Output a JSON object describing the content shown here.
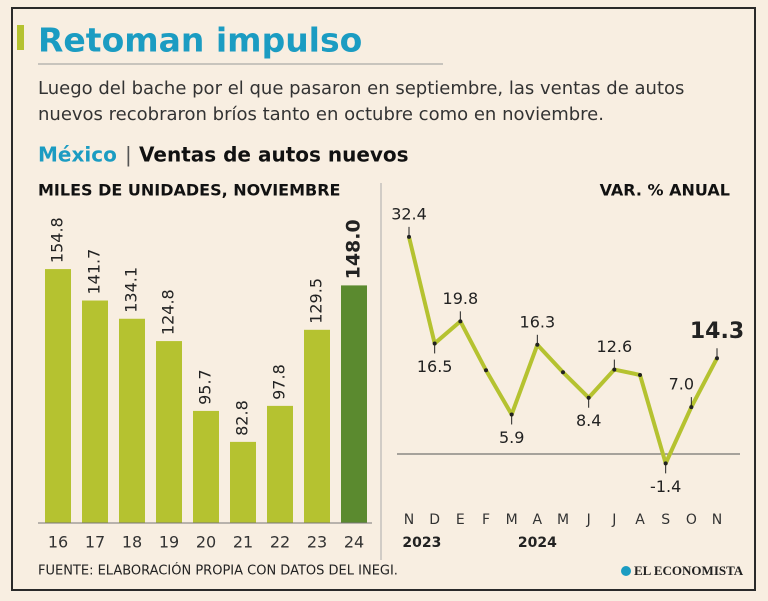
{
  "header": {
    "title": "Retoman impulso",
    "subtitle_lines": [
      "Luego del bache por el que pasaron en septiembre, las ventas de autos",
      "nuevos recobraron bríos tanto en octubre como en noviembre."
    ],
    "region": "México",
    "separator": "|",
    "chart_name": "Ventas de autos nuevos"
  },
  "chart_data": [
    {
      "type": "bar",
      "axis_label": "MILES DE UNIDADES, NOVIEMBRE",
      "categories": [
        "16",
        "17",
        "18",
        "19",
        "20",
        "21",
        "22",
        "23",
        "24"
      ],
      "values": [
        154.8,
        141.7,
        134.1,
        124.8,
        95.7,
        82.8,
        97.8,
        129.5,
        148.0
      ],
      "value_labels": [
        "154.8",
        "141.7",
        "134.1",
        "124.8",
        "95.7",
        "82.8",
        "97.8",
        "129.5",
        "148.0"
      ],
      "colors": [
        "#b5c230",
        "#b5c230",
        "#b5c230",
        "#b5c230",
        "#b5c230",
        "#b5c230",
        "#b5c230",
        "#b5c230",
        "#5b8a2f"
      ],
      "ylim": [
        49,
        160
      ],
      "highlight_last": true
    },
    {
      "type": "line",
      "axis_label": "VAR. % ANUAL",
      "categories": [
        "N",
        "D",
        "E",
        "F",
        "M",
        "A",
        "M",
        "J",
        "J",
        "A",
        "S",
        "O",
        "N"
      ],
      "values": [
        32.4,
        16.5,
        19.8,
        12.5,
        5.9,
        16.3,
        12.2,
        8.4,
        12.6,
        11.8,
        -1.4,
        7.0,
        14.3
      ],
      "value_labels": [
        "32.4",
        "16.5",
        "19.8",
        null,
        "5.9",
        "16.3",
        null,
        "8.4",
        "12.6",
        null,
        "-1.4",
        "7.0",
        "14.3"
      ],
      "year_labels": [
        "2023",
        "2024"
      ],
      "color": "#b5c230",
      "ylim": [
        -5,
        35
      ],
      "zero_line": true,
      "highlight_last": true
    }
  ],
  "footer": {
    "source": "FUENTE: ELABORACIÓN PROPIA CON DATOS DEL INEGI.",
    "brand": "EL ECONOMISTA"
  }
}
